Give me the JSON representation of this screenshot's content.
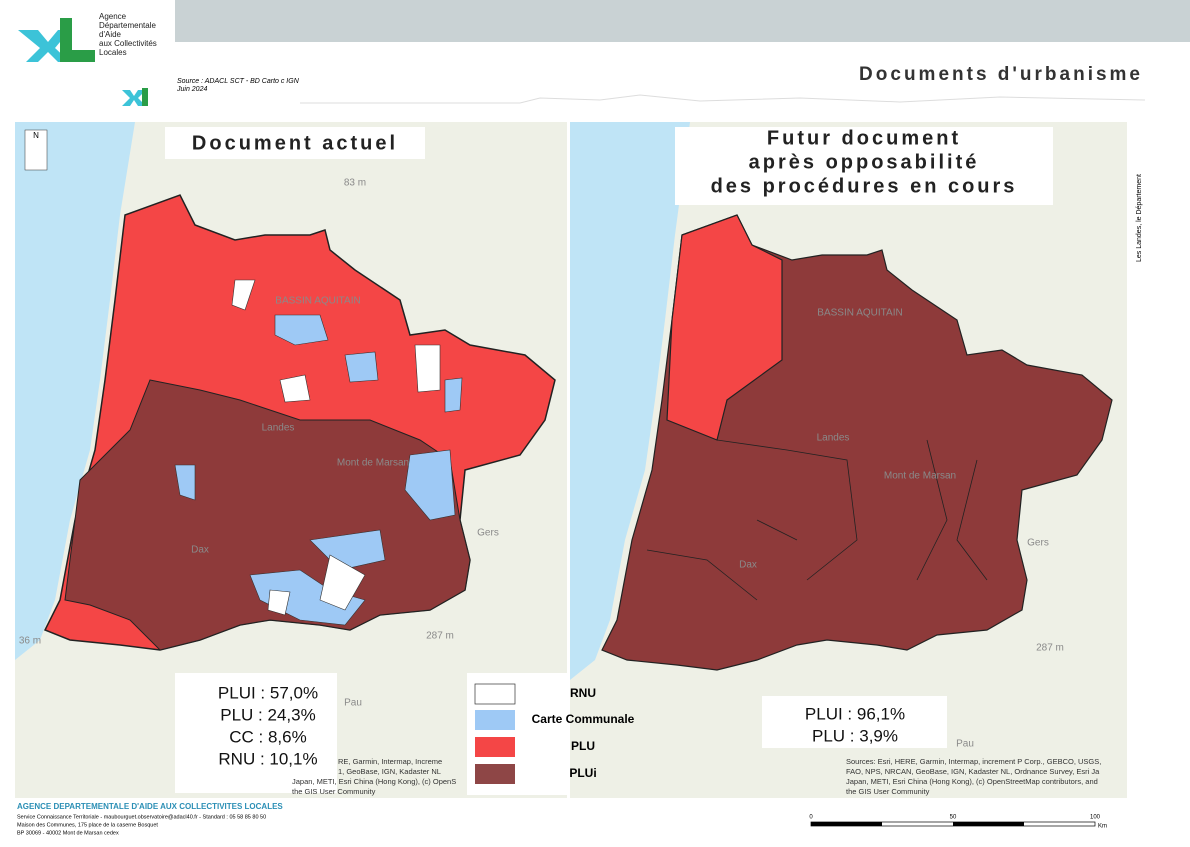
{
  "header": {
    "agency": [
      "Agence",
      "Départementale",
      "d'Aide",
      "aux Collectivités",
      "Locales"
    ],
    "source": "Source : ADACL SCT - BD Carto c IGN",
    "date": "Juin 2024",
    "title": "Documents d'urbanisme",
    "side": "Les Landes, le Département"
  },
  "maps": [
    {
      "title": [
        "Document actuel"
      ],
      "stats": [
        "PLUI : 57,0%",
        "PLU : 24,3%",
        "CC : 8,6%",
        "RNU : 10,1%"
      ],
      "labels": [
        "83 m",
        "BASSIN AQUITAIN",
        "Landes",
        "Mont de Marsan",
        "Dax",
        "Gers",
        "287 m",
        "36 m",
        "Pau"
      ],
      "attribution": [
        "RE, Garmin, Intermap, Increme",
        "1, GeoBase, IGN, Kadaster NL",
        "Japan, METI, Esri China (Hong Kong), (c) OpenS",
        "the GIS User Community"
      ]
    },
    {
      "title": [
        "Futur document",
        "après opposabilité",
        "des procédures en cours"
      ],
      "stats": [
        "PLUI : 96,1%",
        "PLU : 3,9%"
      ],
      "labels": [
        "BASSIN AQUITAIN",
        "Landes",
        "Mont de Marsan",
        "Dax",
        "Gers",
        "287 m",
        "Pau"
      ],
      "attribution": [
        "Sources: Esri, HERE, Garmin, Intermap, increment P Corp., GEBCO, USGS,",
        "FAO, NPS, NRCAN, GeoBase, IGN, Kadaster NL, Ordnance Survey, Esri Ja",
        "Japan, METI, Esri China (Hong Kong), (c) OpenStreetMap contributors, and",
        "the GIS User Community"
      ]
    }
  ],
  "legend": [
    "RNU",
    "Carte Communale",
    "PLU",
    "PLUi"
  ],
  "footer": {
    "agency": "AGENCE DEPARTEMENTALE D'AIDE AUX COLLECTIVITES LOCALES",
    "lines": [
      "Service Connaissance Territoriale - maubourguet.observatoire@adacl40.fr - Standard : 05 58 85 80 50",
      "Maison des Communes, 175 place de la caserne Bosquet",
      "BP 30069 - 40002 Mont de Marsan cedex"
    ]
  },
  "scale": {
    "labels": [
      "0",
      "50",
      "100"
    ],
    "unit": "Km"
  }
}
